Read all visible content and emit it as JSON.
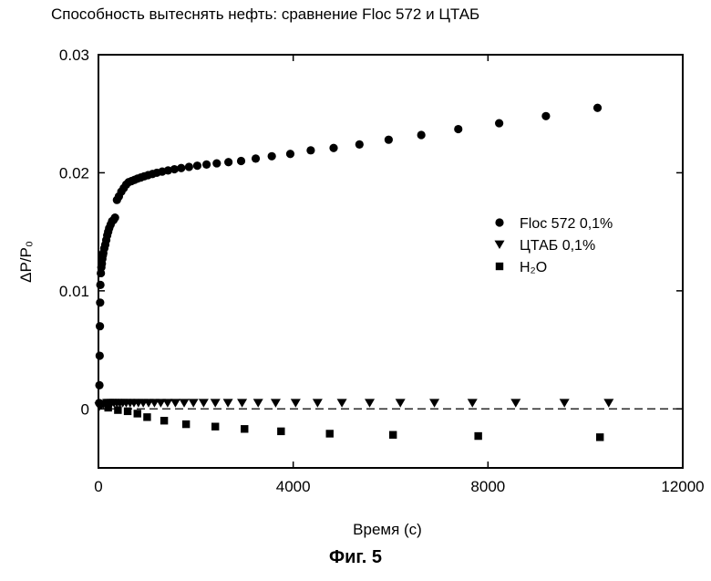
{
  "title": "Способность вытеснять нефть: сравнение Floc 572 и ЦТАБ",
  "caption": "Фиг. 5",
  "chart_data": {
    "type": "scatter",
    "xlabel": "Время (с)",
    "ylabel": "ΔP/P₀",
    "xlim": [
      0,
      12000
    ],
    "ylim": [
      -0.005,
      0.03
    ],
    "x_ticks": [
      "0",
      "4000",
      "8000",
      "12000"
    ],
    "x_tick_values": [
      0,
      4000,
      8000,
      12000
    ],
    "y_ticks": [
      "0",
      "0.01",
      "0.02",
      "0.03"
    ],
    "y_tick_values": [
      0,
      0.01,
      0.02,
      0.03
    ],
    "grid": false,
    "legend_position": "right",
    "reference_line": {
      "y": 0,
      "style": "dashed"
    },
    "series": [
      {
        "name": "Floc 572 0,1%",
        "marker": "circle",
        "x": [
          15,
          20,
          25,
          30,
          35,
          40,
          50,
          60,
          70,
          80,
          90,
          100,
          120,
          140,
          160,
          180,
          200,
          220,
          250,
          280,
          310,
          340,
          380,
          420,
          470,
          520,
          570,
          620,
          680,
          740,
          800,
          870,
          940,
          1020,
          1110,
          1200,
          1310,
          1430,
          1560,
          1700,
          1860,
          2030,
          2220,
          2430,
          2670,
          2930,
          3230,
          3560,
          3940,
          4360,
          4830,
          5360,
          5960,
          6630,
          7390,
          8230,
          9190,
          10250
        ],
        "y": [
          0.0005,
          0.002,
          0.0045,
          0.007,
          0.009,
          0.0105,
          0.0115,
          0.012,
          0.0123,
          0.0127,
          0.013,
          0.0132,
          0.0136,
          0.0139,
          0.0143,
          0.0147,
          0.015,
          0.0153,
          0.0156,
          0.0159,
          0.016,
          0.0162,
          0.0177,
          0.018,
          0.0184,
          0.0187,
          0.019,
          0.0192,
          0.0193,
          0.0194,
          0.0195,
          0.0196,
          0.0197,
          0.0198,
          0.0199,
          0.02,
          0.0201,
          0.0202,
          0.0203,
          0.0204,
          0.0205,
          0.0206,
          0.0207,
          0.0208,
          0.0209,
          0.021,
          0.0212,
          0.0214,
          0.0216,
          0.0219,
          0.0221,
          0.0224,
          0.0228,
          0.0232,
          0.0237,
          0.0242,
          0.0248,
          0.0255
        ]
      },
      {
        "name": "ЦТАБ 0,1%",
        "marker": "triangle-down",
        "x": [
          20,
          60,
          100,
          140,
          180,
          220,
          270,
          320,
          380,
          440,
          500,
          570,
          650,
          730,
          820,
          920,
          1030,
          1150,
          1280,
          1420,
          1580,
          1760,
          1950,
          2160,
          2400,
          2660,
          2950,
          3280,
          3640,
          4050,
          4500,
          5000,
          5570,
          6200,
          6900,
          7680,
          8570,
          9570,
          10480
        ],
        "y": [
          0.0002,
          0.0003,
          0.0004,
          0.0004,
          0.0005,
          0.0005,
          0.0005,
          0.0005,
          0.0005,
          0.0005,
          0.0005,
          0.0005,
          0.0005,
          0.0005,
          0.0005,
          0.0005,
          0.0005,
          0.0005,
          0.0005,
          0.0005,
          0.0005,
          0.0005,
          0.0005,
          0.0005,
          0.0005,
          0.0005,
          0.0005,
          0.0005,
          0.0005,
          0.0005,
          0.0005,
          0.0005,
          0.0005,
          0.0005,
          0.0005,
          0.0005,
          0.0005,
          0.0005,
          0.0005
        ]
      },
      {
        "name": "H₂O",
        "marker": "square",
        "x": [
          200,
          400,
          600,
          800,
          1000,
          1350,
          1800,
          2400,
          3000,
          3750,
          4750,
          6050,
          7800,
          10300
        ],
        "y": [
          0.0001,
          -0.0001,
          -0.0002,
          -0.0004,
          -0.0007,
          -0.001,
          -0.0013,
          -0.0015,
          -0.0017,
          -0.0019,
          -0.0021,
          -0.0022,
          -0.0023,
          -0.0024
        ]
      }
    ]
  }
}
